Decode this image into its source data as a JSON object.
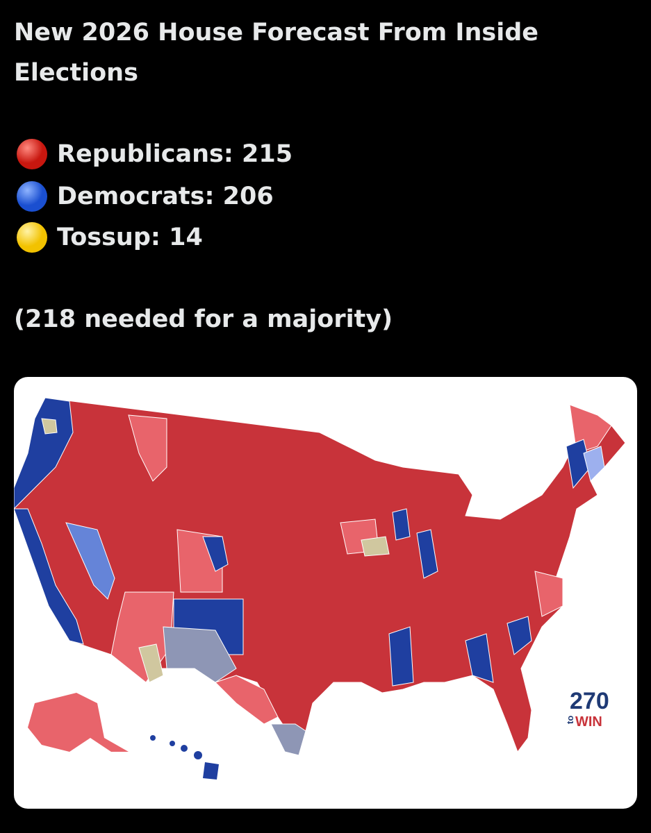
{
  "post": {
    "title": "New 2026 House Forecast From Inside Elections",
    "legend": [
      {
        "text": "Republicans: 215"
      },
      {
        "text": "Democrats: 206"
      },
      {
        "text": "Tossup: 14"
      }
    ],
    "note": "(218 needed for a majority)"
  },
  "map": {
    "logo": {
      "number": "270",
      "small": "to",
      "word": "WIN"
    }
  }
}
